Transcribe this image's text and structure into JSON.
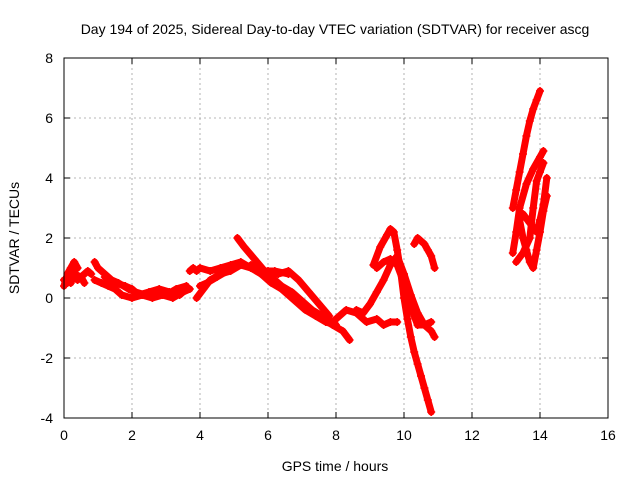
{
  "chart_data": {
    "type": "scatter",
    "title": "Day 194 of 2025, Sidereal Day-to-day VTEC variation (SDTVAR) for receiver ascg",
    "xlabel": "GPS time / hours",
    "ylabel": "SDTVAR / TECUs",
    "xlim": [
      0,
      16
    ],
    "ylim": [
      -4,
      8
    ],
    "xticks": [
      0,
      2,
      4,
      6,
      8,
      10,
      12,
      14,
      16
    ],
    "yticks": [
      -4,
      -2,
      0,
      2,
      4,
      6,
      8
    ],
    "grid": true,
    "marker": "plus",
    "color": "#ff0000",
    "series": [
      {
        "x": [
          0.0,
          0.1,
          0.2,
          0.3,
          0.4
        ],
        "y": [
          0.4,
          0.8,
          1.0,
          1.2,
          1.0
        ]
      },
      {
        "x": [
          0.0,
          0.1,
          0.2,
          0.3,
          0.5,
          0.7,
          0.8
        ],
        "y": [
          0.6,
          0.5,
          0.7,
          0.8,
          0.7,
          0.9,
          0.8
        ]
      },
      {
        "x": [
          0.2,
          0.3,
          0.4,
          0.5,
          0.6
        ],
        "y": [
          0.5,
          0.9,
          0.6,
          0.7,
          0.5
        ]
      },
      {
        "x": [
          0.9,
          1.0,
          1.2,
          1.4,
          1.6,
          1.9,
          2.1,
          2.4,
          2.7,
          3.0,
          3.3,
          3.6
        ],
        "y": [
          1.2,
          1.0,
          0.8,
          0.6,
          0.5,
          0.3,
          0.2,
          0.1,
          0.2,
          0.1,
          0.3,
          0.4
        ]
      },
      {
        "x": [
          0.9,
          1.1,
          1.3,
          1.5,
          1.7,
          2.0,
          2.3,
          2.6,
          2.9,
          3.2,
          3.5,
          3.7
        ],
        "y": [
          0.6,
          0.5,
          0.4,
          0.3,
          0.1,
          0.0,
          0.1,
          0.0,
          0.1,
          0.0,
          0.2,
          0.3
        ]
      },
      {
        "x": [
          1.2,
          1.5,
          1.8,
          2.0,
          2.2,
          2.5,
          2.8,
          3.1,
          3.4,
          3.6
        ],
        "y": [
          0.7,
          0.5,
          0.4,
          0.3,
          0.1,
          0.2,
          0.3,
          0.2,
          0.1,
          0.3
        ]
      },
      {
        "x": [
          3.7,
          3.8,
          3.9,
          4.0,
          4.3,
          4.6,
          4.9,
          5.2,
          5.5,
          5.8,
          6.2,
          6.6
        ],
        "y": [
          0.9,
          1.0,
          0.9,
          1.0,
          0.9,
          1.0,
          1.1,
          1.2,
          1.0,
          0.9,
          0.9,
          0.8
        ]
      },
      {
        "x": [
          3.9,
          4.1,
          4.3,
          4.6,
          4.9,
          5.2,
          5.5,
          5.8,
          6.1,
          6.4,
          6.7,
          7.0,
          7.3,
          7.6,
          7.9,
          8.1,
          8.3,
          8.6,
          8.9,
          9.2,
          9.4,
          9.6,
          9.8
        ],
        "y": [
          0.0,
          0.3,
          0.6,
          0.8,
          0.9,
          1.1,
          1.0,
          0.8,
          0.7,
          0.4,
          0.2,
          -0.1,
          -0.4,
          -0.6,
          -0.8,
          -0.6,
          -0.4,
          -0.5,
          -0.8,
          -0.7,
          -0.9,
          -0.8,
          -0.8
        ]
      },
      {
        "x": [
          4.0,
          4.2,
          4.5,
          4.8,
          5.0
        ],
        "y": [
          0.4,
          0.5,
          0.7,
          0.9,
          1.0
        ]
      },
      {
        "x": [
          5.1,
          5.3,
          5.6,
          5.9,
          6.2,
          6.5,
          6.8,
          7.1,
          7.4,
          7.7,
          8.0
        ],
        "y": [
          2.0,
          1.7,
          1.3,
          0.9,
          0.5,
          0.2,
          -0.1,
          -0.4,
          -0.6,
          -0.8,
          -0.9
        ]
      },
      {
        "x": [
          5.5,
          5.8,
          6.1,
          6.4,
          6.7,
          7.0,
          7.3,
          7.6,
          7.9,
          8.2,
          8.4
        ],
        "y": [
          1.1,
          0.8,
          0.5,
          0.3,
          0.1,
          -0.2,
          -0.5,
          -0.7,
          -0.9,
          -1.1,
          -1.4
        ]
      },
      {
        "x": [
          6.0,
          6.3,
          6.6,
          6.9,
          7.2,
          7.5,
          7.8
        ],
        "y": [
          0.9,
          0.8,
          0.9,
          0.6,
          0.2,
          -0.2,
          -0.6
        ]
      },
      {
        "x": [
          9.1,
          9.3,
          9.5,
          9.6,
          9.7,
          9.8,
          9.9,
          10.0,
          10.1,
          10.2,
          10.3,
          10.4,
          10.5,
          10.6,
          10.7,
          10.8
        ],
        "y": [
          1.1,
          1.7,
          2.1,
          2.3,
          2.2,
          1.6,
          0.9,
          0.0,
          -0.7,
          -1.3,
          -1.8,
          -2.2,
          -2.6,
          -3.0,
          -3.4,
          -3.8
        ]
      },
      {
        "x": [
          8.6,
          8.8,
          9.0,
          9.2,
          9.4,
          9.6,
          9.8,
          10.0,
          10.2,
          10.4,
          10.6,
          10.8,
          10.9
        ],
        "y": [
          -0.4,
          -0.5,
          -0.2,
          0.2,
          0.6,
          1.1,
          1.4,
          0.8,
          0.1,
          -0.5,
          -0.9,
          -1.1,
          -1.3
        ]
      },
      {
        "x": [
          9.2,
          9.4,
          9.6,
          9.8,
          10.0,
          10.2,
          10.4,
          10.6,
          10.8
        ],
        "y": [
          1.0,
          1.2,
          1.3,
          1.1,
          0.5,
          -0.3,
          -0.9,
          -0.9,
          -0.8
        ]
      },
      {
        "x": [
          10.3,
          10.4,
          10.5,
          10.6,
          10.7,
          10.8,
          10.9
        ],
        "y": [
          1.8,
          2.0,
          1.9,
          1.8,
          1.6,
          1.4,
          1.0
        ]
      },
      {
        "x": [
          13.2,
          13.3,
          13.4,
          13.5,
          13.6,
          13.7,
          13.8,
          13.9,
          14.0
        ],
        "y": [
          3.0,
          3.6,
          4.2,
          4.8,
          5.4,
          5.9,
          6.3,
          6.6,
          6.9
        ]
      },
      {
        "x": [
          13.2,
          13.3,
          13.4,
          13.6,
          13.8,
          14.0,
          14.1
        ],
        "y": [
          1.5,
          2.2,
          3.0,
          3.8,
          4.3,
          4.7,
          4.9
        ]
      },
      {
        "x": [
          13.3,
          13.5,
          13.7,
          13.8,
          13.9,
          14.0,
          14.1
        ],
        "y": [
          1.2,
          1.5,
          2.0,
          3.0,
          3.9,
          4.2,
          4.5
        ]
      },
      {
        "x": [
          13.4,
          13.5,
          13.6,
          13.7,
          13.8,
          13.9,
          14.0,
          14.1,
          14.2
        ],
        "y": [
          2.6,
          2.0,
          1.6,
          1.2,
          1.0,
          1.6,
          2.2,
          2.9,
          3.4
        ]
      },
      {
        "x": [
          13.5,
          13.7,
          13.9,
          14.0,
          14.1,
          14.2
        ],
        "y": [
          2.8,
          2.5,
          2.2,
          2.6,
          3.1,
          4.0
        ]
      }
    ]
  }
}
